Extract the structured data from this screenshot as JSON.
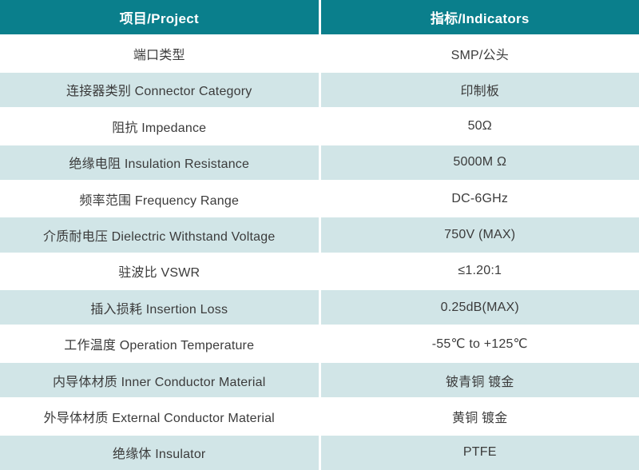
{
  "table": {
    "title": "Connector specification table",
    "header_bg_color": "#0a7f8c",
    "header_text_color": "#ffffff",
    "alt_row_bg_color": "#d1e5e7",
    "body_text_color": "#3b3b3b",
    "headers": {
      "project": "项目/Project",
      "indicators": "指标/Indicators"
    },
    "rows": [
      {
        "project": "端口类型",
        "indicator": "SMP/公头"
      },
      {
        "project": "连接器类别 Connector Category",
        "indicator": "印制板"
      },
      {
        "project": "阻抗 Impedance",
        "indicator": "50Ω"
      },
      {
        "project": "绝缘电阻 Insulation Resistance",
        "indicator": "5000M Ω"
      },
      {
        "project": "频率范围 Frequency Range",
        "indicator": "DC-6GHz"
      },
      {
        "project": "介质耐电压 Dielectric Withstand Voltage",
        "indicator": "750V (MAX)"
      },
      {
        "project": "驻波比 VSWR",
        "indicator": "≤1.20:1"
      },
      {
        "project": "插入损耗 Insertion Loss",
        "indicator": "0.25dB(MAX)"
      },
      {
        "project": "工作温度 Operation Temperature",
        "indicator": "-55℃ to +125℃"
      },
      {
        "project": "内导体材质 Inner Conductor Material",
        "indicator": "铍青铜 镀金"
      },
      {
        "project": "外导体材质 External Conductor Material",
        "indicator": "黄铜 镀金"
      },
      {
        "project": "绝缘体 Insulator",
        "indicator": "PTFE"
      }
    ]
  }
}
